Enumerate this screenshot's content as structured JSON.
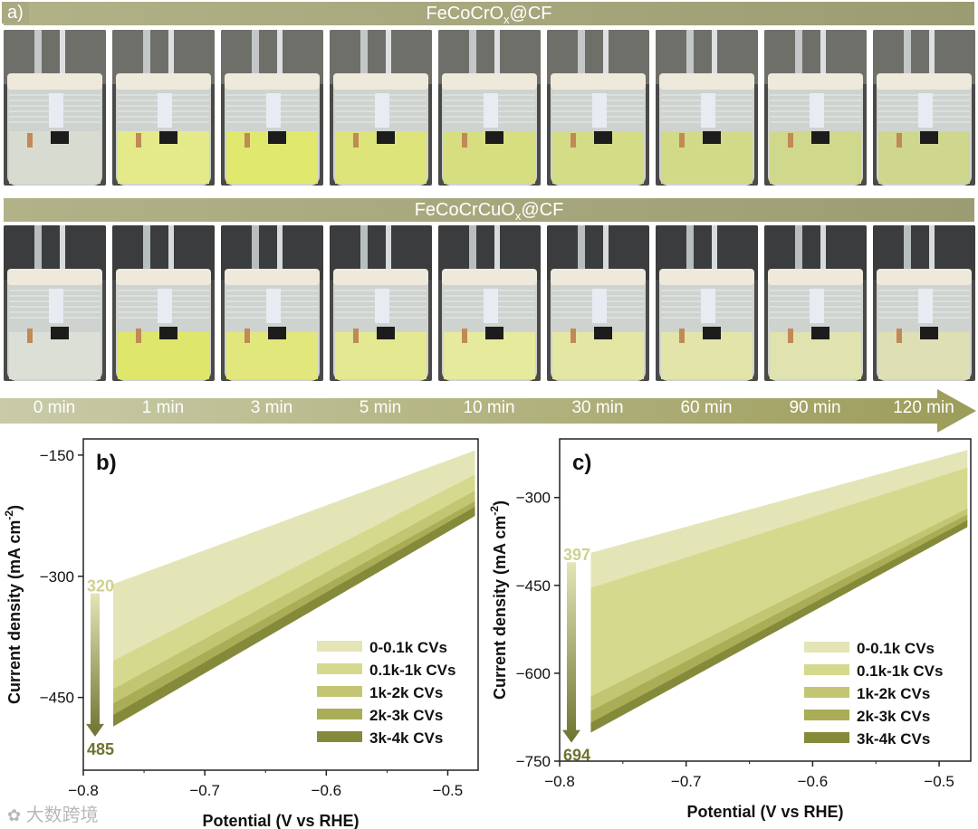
{
  "panel_a": {
    "label": "a)",
    "row1_title": "FeCoCrO",
    "row1_sub": "x",
    "row1_suffix": "@CF",
    "row2_title": "FeCoCrCuO",
    "row2_sub": "x",
    "row2_suffix": "@CF",
    "time_labels": [
      "0 min",
      "1 min",
      "3 min",
      "5 min",
      "10 min",
      "30 min",
      "60 min",
      "90 min",
      "120 min"
    ],
    "row1_liquid_colors": [
      "#d8dcd0",
      "#e4ea8a",
      "#e0e86e",
      "#dde47a",
      "#d6de80",
      "#d4dc86",
      "#d2da88",
      "#d0d88c",
      "#cfd68e"
    ],
    "row2_liquid_colors": [
      "#dcdfd6",
      "#dee66c",
      "#e2e77c",
      "#e4e890",
      "#e6ea9c",
      "#e4e6a4",
      "#e2e4aa",
      "#e0e2b0",
      "#dedfb4"
    ],
    "arrow_colors": {
      "start": "#c9cba8",
      "end": "#9c9c5a"
    }
  },
  "watermark": "大数跨境",
  "chart_data": [
    {
      "type": "line",
      "panel_label": "b)",
      "xlabel": "Potential (V vs RHE)",
      "ylabel": "Current density (mA cm",
      "ylabel_sup": "-2",
      "ylabel_end": ")",
      "xlim": [
        -0.8,
        -0.475
      ],
      "ylim": [
        -540,
        -130
      ],
      "xticks": [
        -0.8,
        -0.7,
        -0.6,
        -0.5
      ],
      "xtick_labels": [
        "−0.8",
        "−0.7",
        "−0.6",
        "−0.5"
      ],
      "yticks": [
        -150,
        -300,
        -450
      ],
      "ytick_labels": [
        "−150",
        "−300",
        "−450"
      ],
      "arrow_top_label": "320",
      "arrow_bottom_label": "485",
      "series": [
        {
          "name": "0-0.1k CVs",
          "color": "#e3e5b6",
          "x": [
            -0.775,
            -0.478
          ],
          "y_top": [
            -310,
            -145
          ],
          "y_bottom": [
            -405,
            -210
          ]
        },
        {
          "name": "0.1k-1k CVs",
          "color": "#d5d98d",
          "x": [
            -0.775,
            -0.478
          ],
          "y_top": [
            -405,
            -175
          ],
          "y_bottom": [
            -440,
            -195
          ]
        },
        {
          "name": "1k-2k CVs",
          "color": "#c2c672",
          "x": [
            -0.775,
            -0.478
          ],
          "y_top": [
            -440,
            -195
          ],
          "y_bottom": [
            -458,
            -208
          ]
        },
        {
          "name": "2k-3k CVs",
          "color": "#a9ad56",
          "x": [
            -0.775,
            -0.478
          ],
          "y_top": [
            -458,
            -208
          ],
          "y_bottom": [
            -472,
            -215
          ]
        },
        {
          "name": "3k-4k CVs",
          "color": "#85893a",
          "x": [
            -0.775,
            -0.478
          ],
          "y_top": [
            -472,
            -215
          ],
          "y_bottom": [
            -485,
            -225
          ]
        }
      ]
    },
    {
      "type": "line",
      "panel_label": "c)",
      "xlabel": "Potential (V vs RHE)",
      "ylabel": "Current density (mA cm",
      "ylabel_sup": "-2",
      "ylabel_end": ")",
      "xlim": [
        -0.8,
        -0.475
      ],
      "ylim": [
        -750,
        -200
      ],
      "xticks": [
        -0.8,
        -0.7,
        -0.6,
        -0.5
      ],
      "xtick_labels": [
        "−0.8",
        "−0.7",
        "−0.6",
        "−0.5"
      ],
      "yticks": [
        -300,
        -450,
        -600,
        -750
      ],
      "ytick_labels": [
        "−300",
        "−450",
        "−600",
        "−750"
      ],
      "arrow_top_label": "397",
      "arrow_bottom_label": "694",
      "series": [
        {
          "name": "0-0.1k CVs",
          "color": "#e3e5b6",
          "x": [
            -0.775,
            -0.478
          ],
          "y_top": [
            -395,
            -220
          ],
          "y_bottom": [
            -455,
            -260
          ]
        },
        {
          "name": "0.1k-1k CVs",
          "color": "#d5d98d",
          "x": [
            -0.775,
            -0.478
          ],
          "y_top": [
            -455,
            -250
          ],
          "y_bottom": [
            -640,
            -320
          ]
        },
        {
          "name": "1k-2k CVs",
          "color": "#c2c672",
          "x": [
            -0.775,
            -0.478
          ],
          "y_top": [
            -640,
            -320
          ],
          "y_bottom": [
            -665,
            -330
          ]
        },
        {
          "name": "2k-3k CVs",
          "color": "#a9ad56",
          "x": [
            -0.775,
            -0.478
          ],
          "y_top": [
            -665,
            -330
          ],
          "y_bottom": [
            -685,
            -340
          ]
        },
        {
          "name": "3k-4k CVs",
          "color": "#85893a",
          "x": [
            -0.775,
            -0.478
          ],
          "y_top": [
            -685,
            -340
          ],
          "y_bottom": [
            -700,
            -350
          ]
        }
      ]
    }
  ]
}
